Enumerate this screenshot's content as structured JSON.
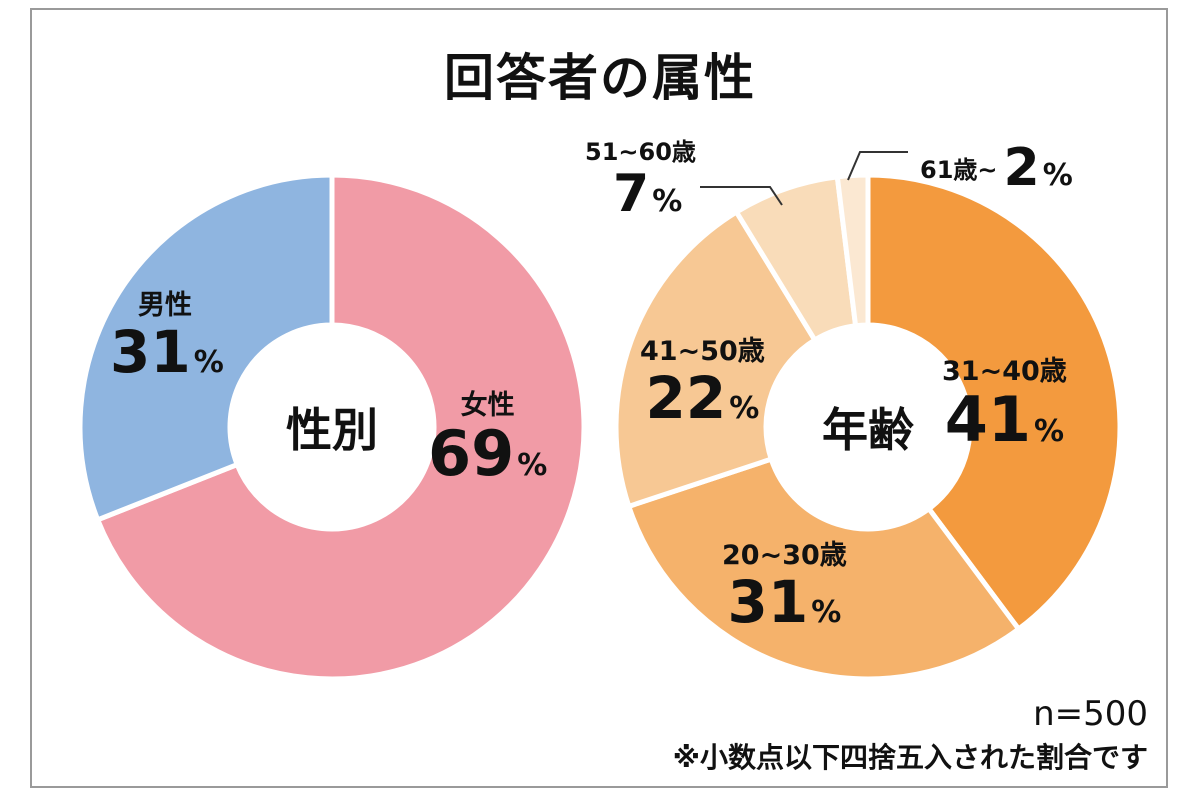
{
  "title": "回答者の属性",
  "chart_data": [
    {
      "type": "pie",
      "center_label": "性別",
      "slices": [
        {
          "name": "女性",
          "value": 69,
          "color": "#f19ba6"
        },
        {
          "name": "男性",
          "value": 31,
          "color": "#8fb5e0"
        }
      ]
    },
    {
      "type": "pie",
      "center_label": "年齢",
      "slices": [
        {
          "name": "31~40歳",
          "value": 41,
          "color": "#f39a3e"
        },
        {
          "name": "20~30歳",
          "value": 31,
          "color": "#f5b26b"
        },
        {
          "name": "41~50歳",
          "value": 22,
          "color": "#f7c894"
        },
        {
          "name": "51~60歳",
          "value": 7,
          "color": "#f9dcb9"
        },
        {
          "name": "61歳~",
          "value": 2,
          "color": "#fbe8d2"
        }
      ]
    }
  ],
  "percent_sign": "%",
  "notes": {
    "sample": "n=500",
    "rounding": "※小数点以下四捨五入された割合です"
  }
}
